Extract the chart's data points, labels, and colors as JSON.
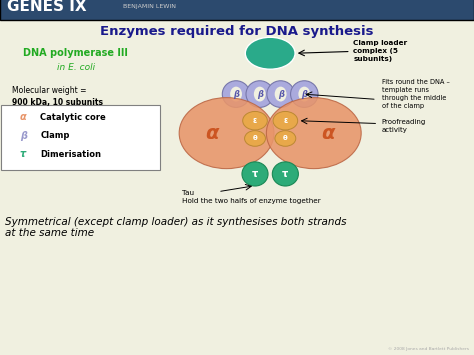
{
  "title": "Enzymes required for DNA synthesis",
  "header_bg": "#2c4a6e",
  "bg_color": "#f0f0e0",
  "main_title_color": "#1a1a8c",
  "dna_pol_text": "DNA polymerase III",
  "ecoli_text": "in E. coli",
  "mol_weight_line1": "Molecular weight =",
  "mol_weight_line2": "900 kDa, 10 subunits",
  "legend_items": [
    {
      "symbol": "α",
      "color": "#e8956a",
      "text": "Catalytic core"
    },
    {
      "symbol": "β",
      "color": "#9999cc",
      "text": "Clamp"
    },
    {
      "symbol": "τ",
      "color": "#2dab78",
      "text": "Dimerisation"
    }
  ],
  "clamp_loader_text": "Clamp loader\ncomplex (5\nsubunits)",
  "clamp_loader_color": "#2aaa8a",
  "beta_clamp_color": "#aaaadd",
  "alpha_color": "#e8956a",
  "alpha_label_color": "#cc5522",
  "epsilon_color": "#e8a84a",
  "tau_color": "#2dab78",
  "annotation_fits": "Fits round the DNA –\ntemplate runs\nthrough the middle\nof the clamp",
  "annotation_proof": "Proofreading\nactivity",
  "annotation_tau": "Tau\nHold the two halfs of enzyme together",
  "bottom_text": "Symmetrical (except clamp loader) as it synthesises both strands\nat the same time",
  "copyright": "© 2008 Jones and Bartlett Publishers"
}
